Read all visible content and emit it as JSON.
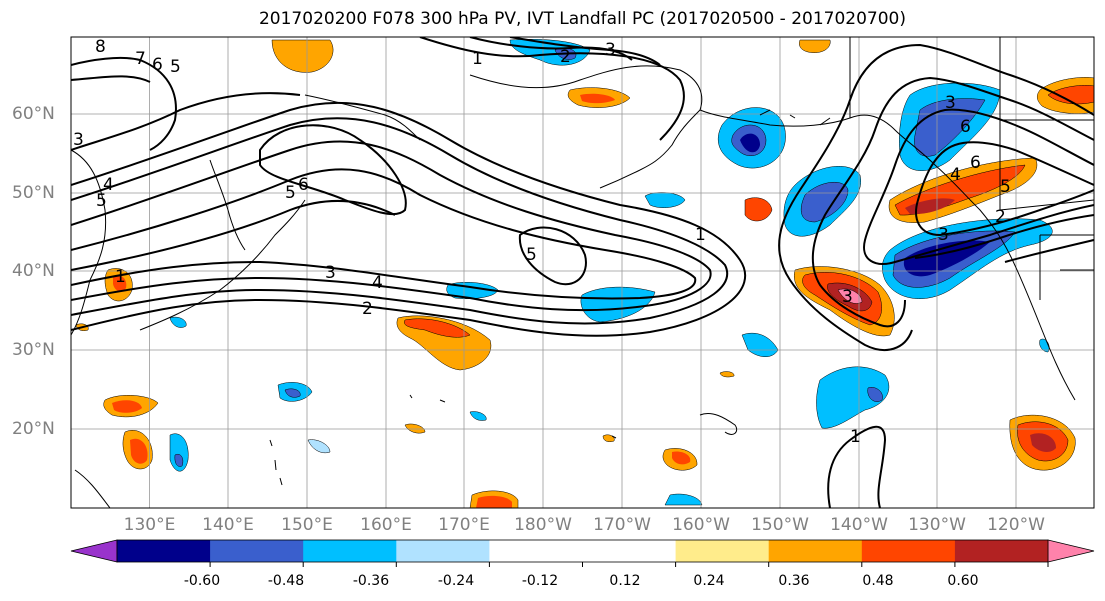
{
  "title": "2017020200 F078 300 hPa PV, IVT Landfall PC (2017020500 - 2017020700)",
  "lat_labels": [
    "60°N",
    "50°N",
    "40°N",
    "30°N",
    "20°N"
  ],
  "lon_labels": [
    "130°E",
    "140°E",
    "150°E",
    "160°E",
    "170°E",
    "180°W",
    "170°W",
    "160°W",
    "150°W",
    "140°W",
    "130°W",
    "120°W"
  ],
  "colorbar": {
    "colors": [
      "#9933cc",
      "#00008b",
      "#3a5fcd",
      "#00bfff",
      "#b0e2ff",
      "#ffffff",
      "#ffffff",
      "#ffec8b",
      "#ffa500",
      "#ff4500",
      "#b22222",
      "#ff82ab"
    ],
    "tick_labels": [
      "-0.60",
      "-0.48",
      "-0.36",
      "-0.24",
      "-0.12",
      "0.12",
      "0.24",
      "0.36",
      "0.48",
      "0.60"
    ]
  },
  "contour_labels": [
    "8",
    "7",
    "6",
    "5",
    "1",
    "2",
    "3",
    "3",
    "5",
    "6",
    "4",
    "5",
    "3",
    "4",
    "2",
    "1",
    "5",
    "1",
    "3",
    "3",
    "4",
    "5",
    "6",
    "2",
    "1",
    "6",
    "3"
  ]
}
